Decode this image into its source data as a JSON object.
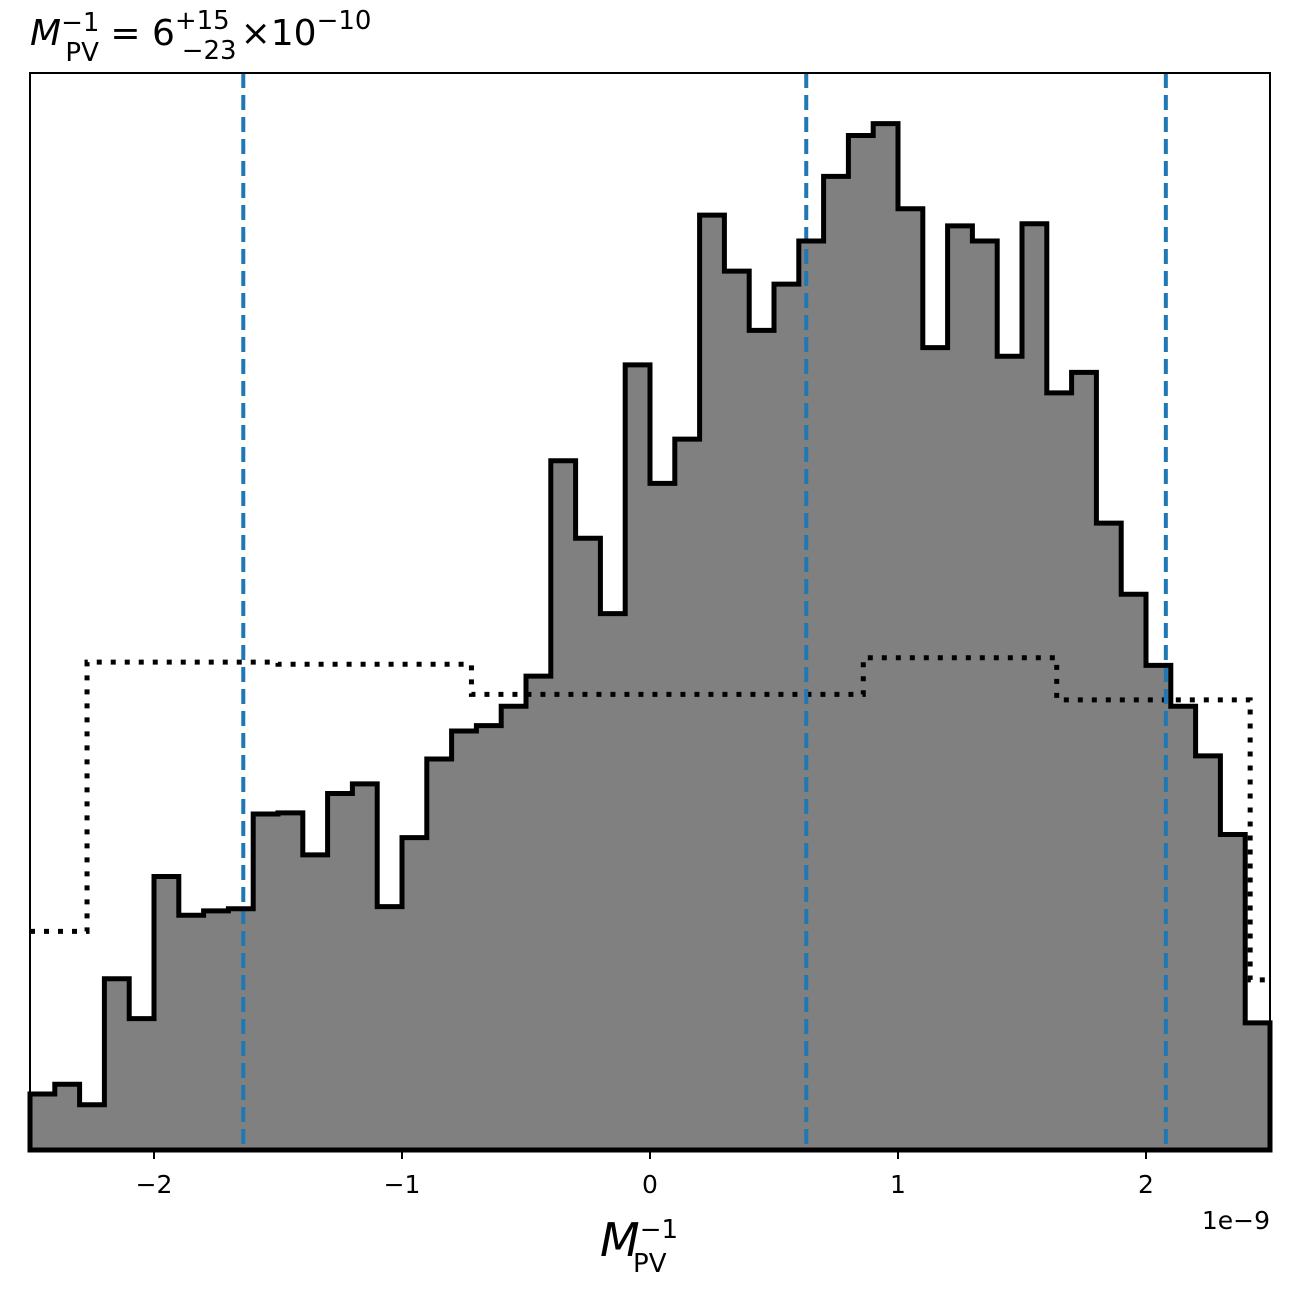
{
  "chart_data": {
    "type": "histogram",
    "title": {
      "base": "M",
      "base_sup": "−1",
      "base_sub": "PV",
      "equals": "=",
      "value": "6",
      "err_plus": "+15",
      "err_minus": "−23",
      "times": "×",
      "power_base": "10",
      "power_exp": "−10"
    },
    "xlabel": {
      "base": "M",
      "sup": "−1",
      "sub": "PV"
    },
    "ylabel": "",
    "x_offset_label": "1e−9",
    "xlim": [
      -2.5e-09,
      2.5e-09
    ],
    "ylim": [
      0,
      1.0
    ],
    "x_ticks": [
      {
        "value": -2e-09,
        "label": "−2"
      },
      {
        "value": -1e-09,
        "label": "−1"
      },
      {
        "value": 0,
        "label": "0"
      },
      {
        "value": 1e-09,
        "label": "1"
      },
      {
        "value": 2e-09,
        "label": "2"
      }
    ],
    "grid": false,
    "colors": {
      "fill": "#808080",
      "outline": "#000000",
      "quantile_line": "#1f77b4",
      "prior_line": "#000000"
    },
    "posterior_histogram": {
      "bin_edges": [
        -2.5e-09,
        -2.4e-09,
        -2.3e-09,
        -2.2e-09,
        -2.1e-09,
        -2e-09,
        -1.9e-09,
        -1.8e-09,
        -1.7e-09,
        -1.6e-09,
        -1.5e-09,
        -1.4e-09,
        -1.3e-09,
        -1.2e-09,
        -1.1e-09,
        -1e-09,
        -9e-10,
        -8e-10,
        -7e-10,
        -6e-10,
        -5e-10,
        -4e-10,
        -3e-10,
        -2e-10,
        -1e-10,
        0.0,
        1e-10,
        2e-10,
        3e-10,
        4e-10,
        5e-10,
        6e-10,
        7e-10,
        8e-10,
        9e-10,
        1e-09,
        1.1e-09,
        1.2e-09,
        1.3e-09,
        1.4e-09,
        1.5e-09,
        1.6e-09,
        1.7e-09,
        1.8e-09,
        1.9e-09,
        2e-09,
        2.1e-09,
        2.2e-09,
        2.3e-09,
        2.4e-09,
        2.5e-09
      ],
      "values": [
        0.052,
        0.061,
        0.042,
        0.159,
        0.122,
        0.254,
        0.218,
        0.222,
        0.224,
        0.312,
        0.313,
        0.274,
        0.331,
        0.34,
        0.226,
        0.29,
        0.363,
        0.389,
        0.394,
        0.412,
        0.44,
        0.64,
        0.568,
        0.498,
        0.729,
        0.619,
        0.66,
        0.868,
        0.816,
        0.761,
        0.804,
        0.844,
        0.904,
        0.942,
        0.953,
        0.874,
        0.745,
        0.858,
        0.844,
        0.737,
        0.86,
        0.703,
        0.722,
        0.582,
        0.516,
        0.45,
        0.412,
        0.366,
        0.293,
        0.118
      ]
    },
    "prior_histogram": {
      "steps": [
        {
          "x0": -2.5e-09,
          "x1": -2.27e-09,
          "value": 0.203
        },
        {
          "x0": -2.27e-09,
          "x1": -1.5e-09,
          "value": 0.453
        },
        {
          "x0": -1.5e-09,
          "x1": -7.2e-10,
          "value": 0.451
        },
        {
          "x0": -7.2e-10,
          "x1": 8.6e-10,
          "value": 0.423
        },
        {
          "x0": 8.6e-10,
          "x1": 1.64e-09,
          "value": 0.457
        },
        {
          "x0": 1.64e-09,
          "x1": 2.42e-09,
          "value": 0.418
        },
        {
          "x0": 2.42e-09,
          "x1": 2.5e-09,
          "value": 0.158
        }
      ]
    },
    "quantile_lines": [
      -1.64e-09,
      6.3e-10,
      2.08e-09
    ]
  }
}
